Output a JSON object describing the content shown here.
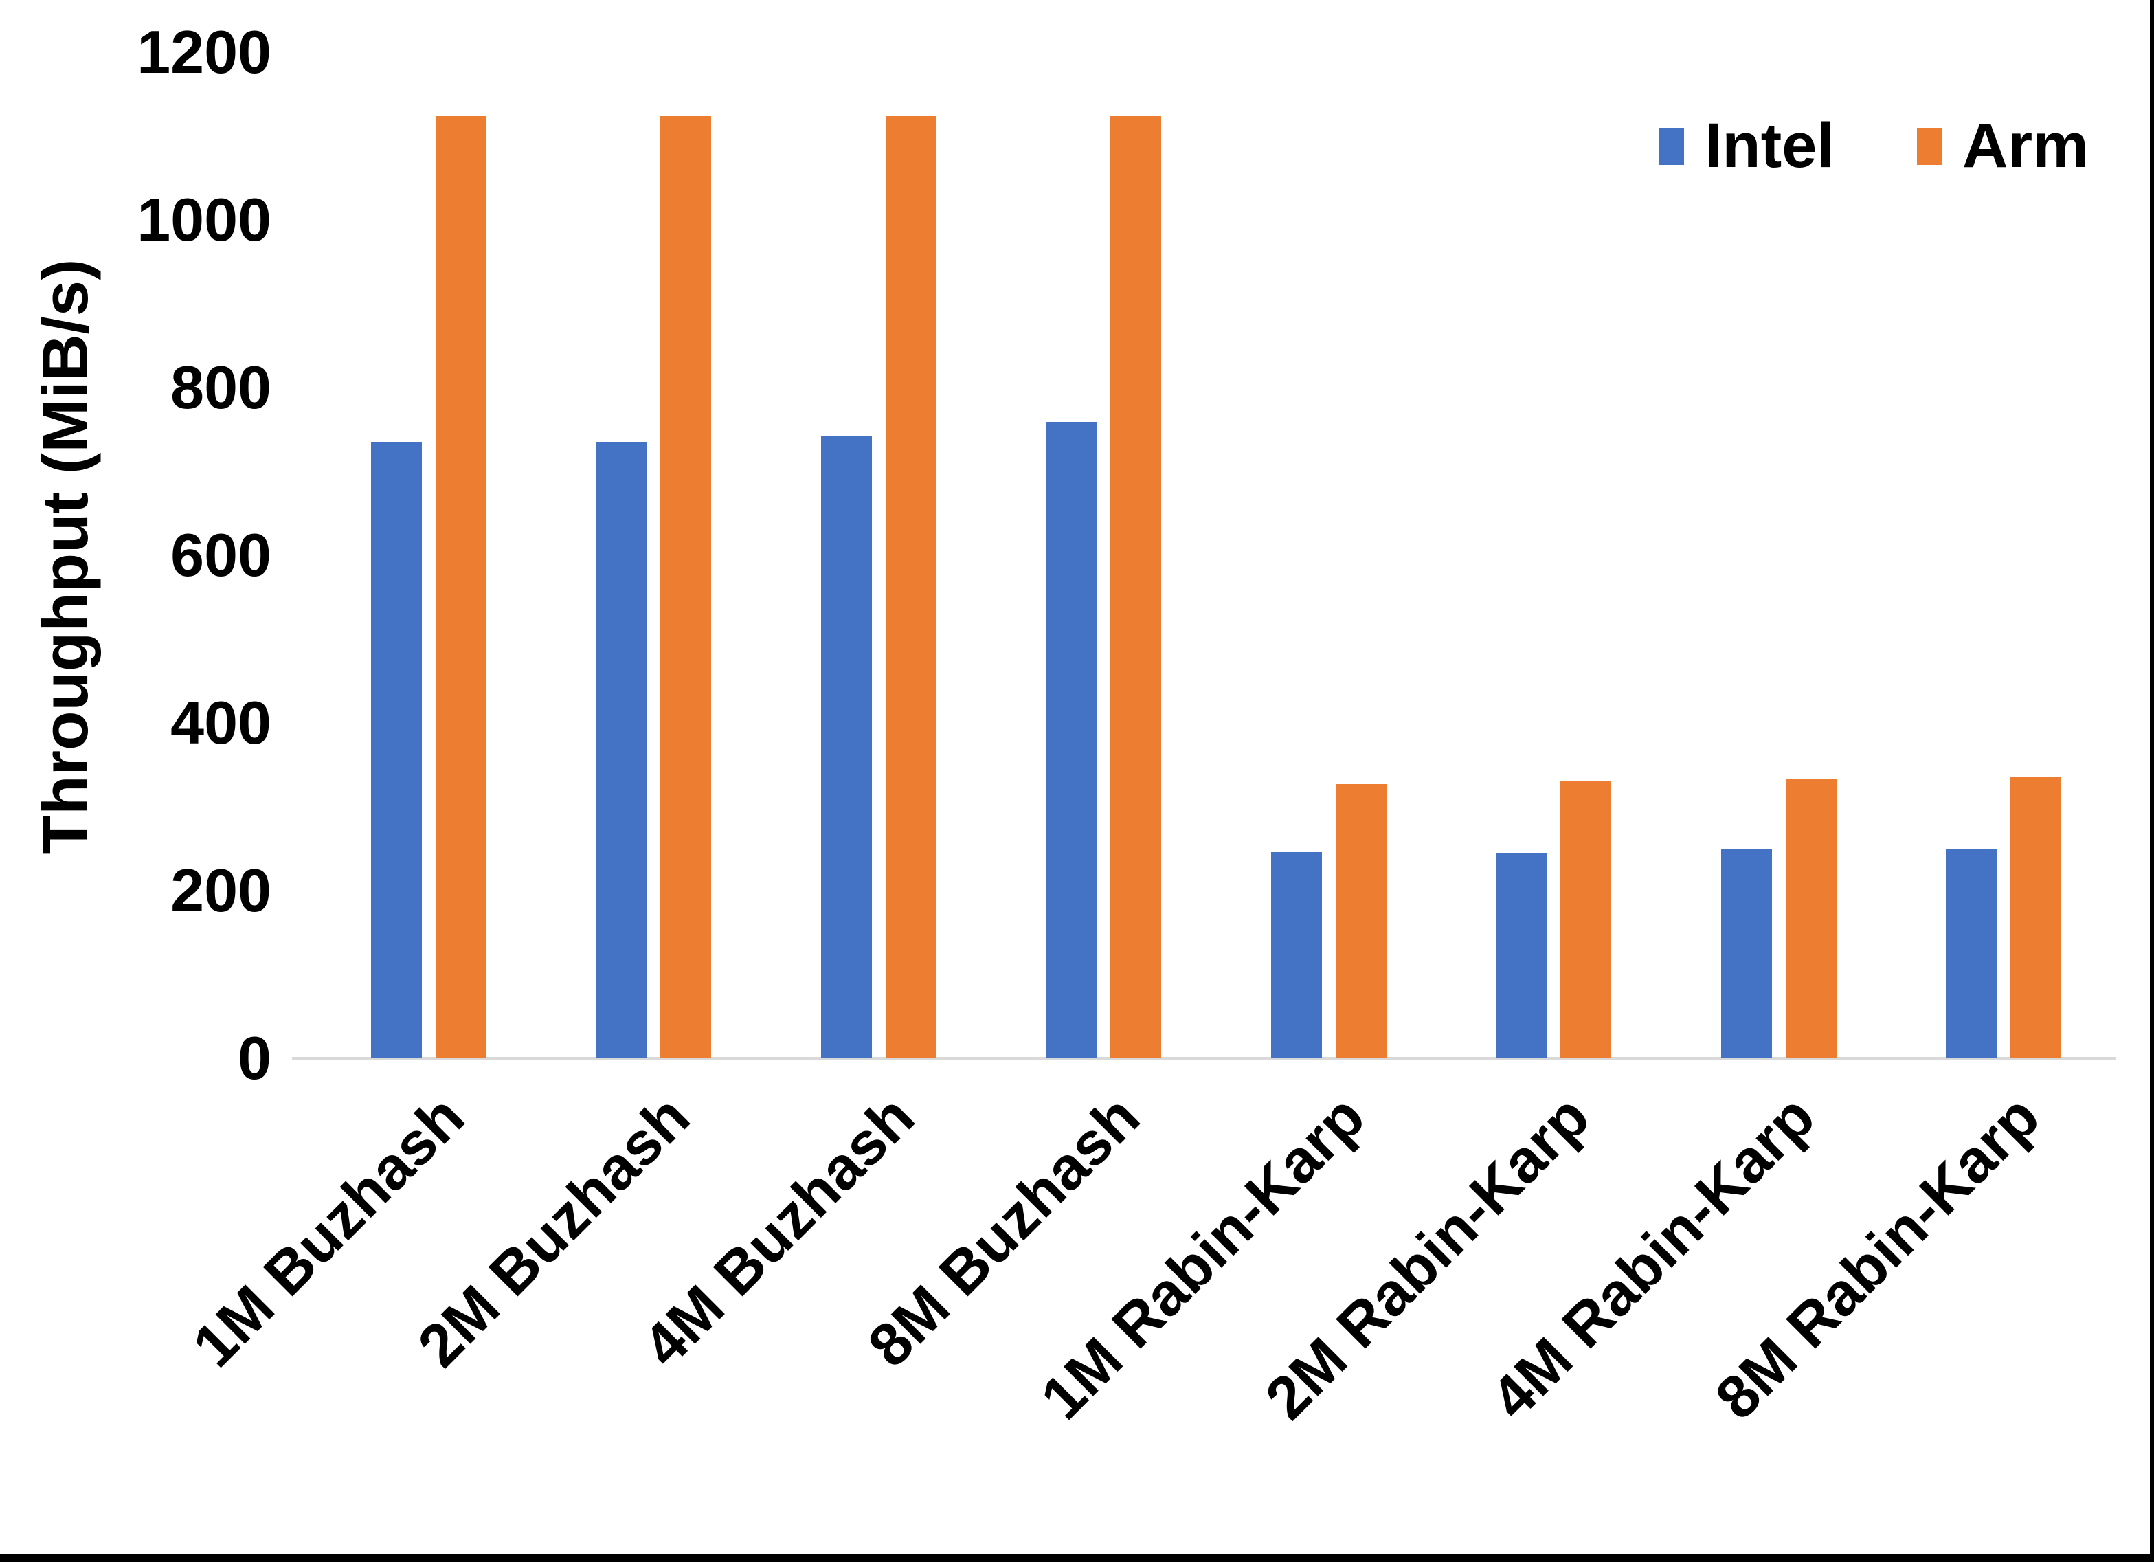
{
  "chart_data": {
    "type": "bar",
    "title": "",
    "xlabel": "",
    "ylabel": "Throughput (MiB/s)",
    "ylim": [
      0,
      1200
    ],
    "yticks": [
      0,
      200,
      400,
      600,
      800,
      1000,
      1200
    ],
    "grid": false,
    "legend_position": "top-right",
    "categories": [
      "1M Buzhash",
      "2M Buzhash",
      "4M Buzhash",
      "8M Buzhash",
      "1M Rabin-Karp",
      "2M Rabin-Karp",
      "4M Rabin-Karp",
      "8M Rabin-Karp"
    ],
    "series": [
      {
        "name": "Intel",
        "color": "#4472C4",
        "values": [
          735,
          735,
          743,
          759,
          246,
          245,
          249,
          250
        ]
      },
      {
        "name": "Arm",
        "color": "#ED7D31",
        "values": [
          1124,
          1124,
          1124,
          1124,
          327,
          330,
          333,
          335
        ]
      }
    ],
    "axis_line_color": "#d9d9d9"
  }
}
